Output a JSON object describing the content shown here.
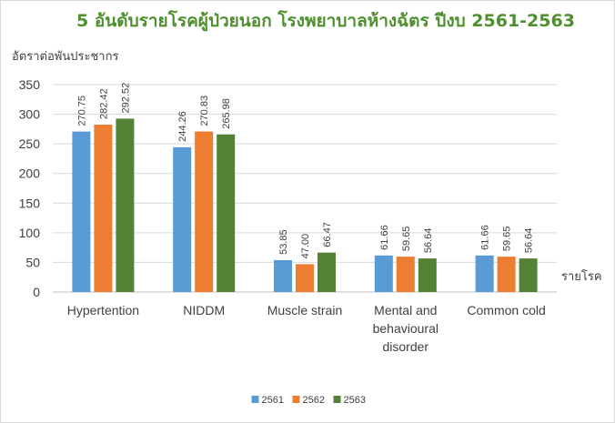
{
  "chart_data": {
    "type": "bar",
    "title": "5 อันดับรายโรคผู้ป่วยนอก โรงพยาบาลห้างฉัตร ปีงบ 2561-2563",
    "ylabel": "อัตราต่อพันประชากร",
    "xlabel": "รายโรค",
    "ylim": [
      0,
      350
    ],
    "ytick_step": 50,
    "grid": true,
    "legend_position": "bottom",
    "categories": [
      [
        "Hypertention"
      ],
      [
        "NIDDM"
      ],
      [
        "Muscle strain"
      ],
      [
        "Mental and",
        "behavioural",
        "disorder"
      ],
      [
        "Common cold"
      ]
    ],
    "series": [
      {
        "name": "2561",
        "color": "#5b9bd5",
        "values": [
          270.75,
          244.26,
          53.85,
          61.66,
          61.66
        ],
        "labels": [
          "270.75",
          "244.26",
          "53.85",
          "61.66",
          "61.66"
        ]
      },
      {
        "name": "2562",
        "color": "#ed7d31",
        "values": [
          282.42,
          270.83,
          47.0,
          59.65,
          59.65
        ],
        "labels": [
          "282.42",
          "270.83",
          "47.00",
          "59.65",
          "59.65"
        ]
      },
      {
        "name": "2563",
        "color": "#548235",
        "values": [
          292.52,
          265.98,
          66.47,
          56.64,
          56.64
        ],
        "labels": [
          "292.52",
          "265.98",
          "66.47",
          "56.64",
          "56.64"
        ]
      }
    ]
  }
}
